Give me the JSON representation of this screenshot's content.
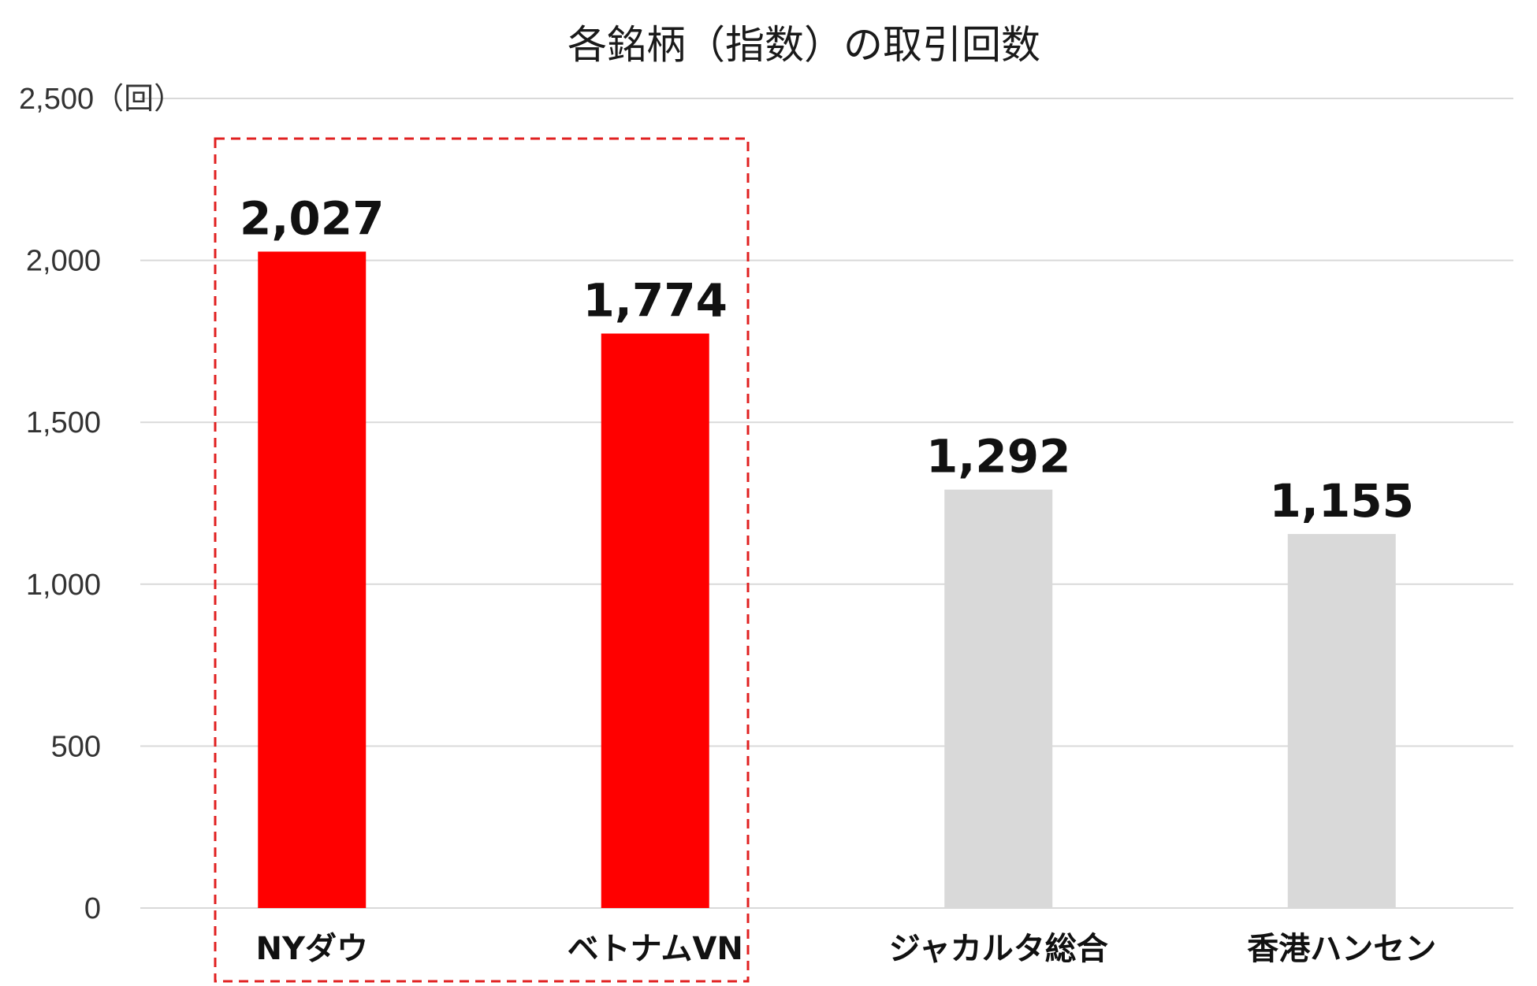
{
  "chart_data": {
    "type": "bar",
    "title": "各銘柄（指数）の取引回数",
    "ylim": [
      0,
      2500
    ],
    "yticks": [
      0,
      500,
      1000,
      1500,
      2000,
      2500
    ],
    "ytick_labels": [
      "0",
      "500",
      "1,000",
      "1,500",
      "2,000",
      "2,500（回）"
    ],
    "grid": true,
    "categories": [
      "NYダウ",
      "ベトナムVN",
      "ジャカルタ総合",
      "香港ハンセン"
    ],
    "values": [
      2027,
      1774,
      1292,
      1155
    ],
    "value_labels": [
      "2,027",
      "1,774",
      "1,292",
      "1,155"
    ],
    "colors": [
      "#ff0000",
      "#ff0000",
      "#d9d9d9",
      "#d9d9d9"
    ],
    "highlight": {
      "categories": [
        "NYダウ",
        "ベトナムVN"
      ],
      "style": "dashed-box",
      "color": "#e02020"
    }
  }
}
